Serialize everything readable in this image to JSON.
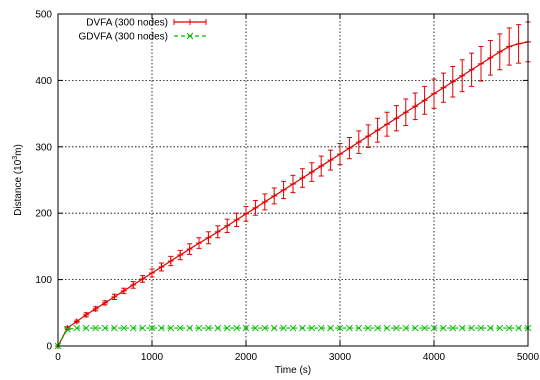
{
  "chart_data": {
    "type": "line",
    "title": "",
    "xlabel": "Time (s)",
    "ylabel": {
      "prefix": "Distance (10",
      "sup": "3",
      "suffix": "m)"
    },
    "xlim": [
      0,
      5000
    ],
    "ylim": [
      0,
      500
    ],
    "xticks": [
      0,
      1000,
      2000,
      3000,
      4000,
      5000
    ],
    "yticks": [
      0,
      100,
      200,
      300,
      400,
      500
    ],
    "grid": true,
    "legend_position": "top-left",
    "series": [
      {
        "name": "DVFA (300 nodes)",
        "color": "#e00000",
        "marker": "plus",
        "line": "solid",
        "error_bars": true,
        "x": [
          0,
          100,
          200,
          300,
          400,
          500,
          600,
          700,
          800,
          900,
          1000,
          1100,
          1200,
          1300,
          1400,
          1500,
          1600,
          1700,
          1800,
          1900,
          2000,
          2100,
          2200,
          2300,
          2400,
          2500,
          2600,
          2700,
          2800,
          2900,
          3000,
          3100,
          3200,
          3300,
          3400,
          3500,
          3600,
          3700,
          3800,
          3900,
          4000,
          4100,
          4200,
          4300,
          4400,
          4500,
          4600,
          4700,
          4800,
          4900,
          5000
        ],
        "y": [
          0,
          27,
          37,
          47,
          56,
          65,
          74,
          83,
          92,
          101,
          110,
          119,
          128,
          137,
          146,
          155,
          163,
          172,
          181,
          190,
          199,
          208,
          217,
          226,
          235,
          244,
          253,
          262,
          271,
          280,
          289,
          298,
          307,
          316,
          325,
          334,
          343,
          352,
          361,
          370,
          380,
          389,
          398,
          407,
          416,
          425,
          434,
          443,
          451,
          455,
          458
        ],
        "error": [
          0,
          2,
          2,
          3,
          3,
          3,
          4,
          4,
          5,
          5,
          6,
          6,
          7,
          7,
          8,
          8,
          9,
          9,
          10,
          10,
          11,
          11,
          12,
          12,
          13,
          13,
          14,
          14,
          15,
          15,
          16,
          16,
          17,
          17,
          18,
          18,
          19,
          20,
          20,
          21,
          22,
          22,
          23,
          24,
          25,
          26,
          26,
          27,
          28,
          29,
          30
        ]
      },
      {
        "name": "GDVFA (300 nodes)",
        "color": "#00c000",
        "marker": "x",
        "line": "dashed",
        "error_bars": false,
        "x": [
          0,
          100,
          200,
          300,
          400,
          500,
          600,
          700,
          800,
          900,
          1000,
          1100,
          1200,
          1300,
          1400,
          1500,
          1600,
          1700,
          1800,
          1900,
          2000,
          2100,
          2200,
          2300,
          2400,
          2500,
          2600,
          2700,
          2800,
          2900,
          3000,
          3100,
          3200,
          3300,
          3400,
          3500,
          3600,
          3700,
          3800,
          3900,
          4000,
          4100,
          4200,
          4300,
          4400,
          4500,
          4600,
          4700,
          4800,
          4900,
          5000
        ],
        "y": [
          0,
          25,
          27,
          27,
          27,
          27,
          27,
          27,
          27,
          27,
          27,
          27,
          27,
          27,
          27,
          27,
          27,
          27,
          27,
          27,
          27,
          27,
          27,
          27,
          27,
          27,
          27,
          27,
          27,
          27,
          27,
          27,
          27,
          27,
          27,
          27,
          27,
          27,
          27,
          27,
          27,
          27,
          27,
          27,
          27,
          27,
          27,
          27,
          27,
          27,
          27
        ]
      }
    ]
  }
}
